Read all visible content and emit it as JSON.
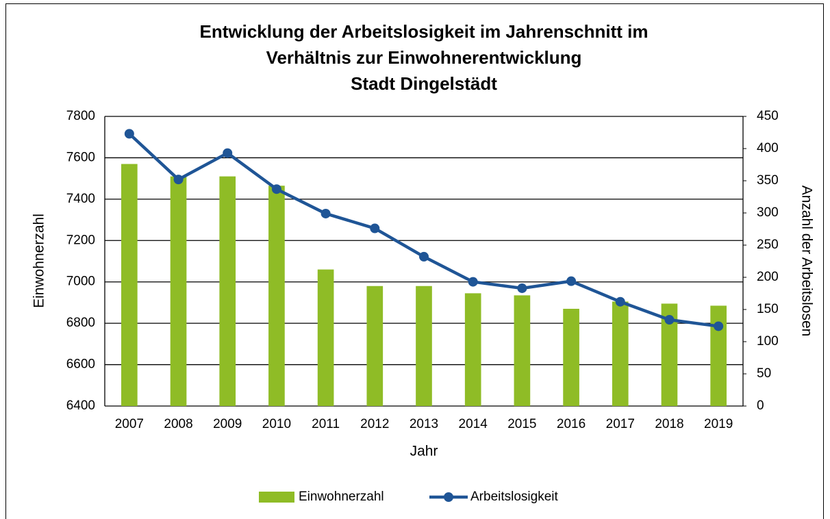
{
  "chart_data": {
    "type": "bar-line",
    "title": [
      "Entwicklung der Arbeitslosigkeit im Jahrenschnitt im",
      "Verhältnis zur Einwohnerentwicklung",
      "Stadt Dingelstädt"
    ],
    "x_label": "Jahr",
    "y_label": "Einwohnerzahl",
    "y2_label": "Anzahl der Arbeitslosen",
    "categories": [
      "2007",
      "2008",
      "2009",
      "2010",
      "2011",
      "2012",
      "2013",
      "2014",
      "2015",
      "2016",
      "2017",
      "2018",
      "2019"
    ],
    "series": [
      {
        "name": "Einwohnerzahl",
        "type": "bar",
        "color": "#8fbc26",
        "values": [
          7570,
          7510,
          7510,
          7465,
          7060,
          6980,
          6980,
          6945,
          6935,
          6870,
          6905,
          6895,
          6885
        ]
      },
      {
        "name": "Arbeitslosigkeit",
        "type": "line",
        "axis": "y2",
        "color": "#1f5596",
        "values": [
          423,
          352,
          393,
          337,
          299,
          276,
          232,
          193,
          183,
          194,
          162,
          134,
          124
        ]
      }
    ],
    "ylim": [
      6400,
      7800
    ],
    "yticks": [
      6400,
      6600,
      6800,
      7000,
      7200,
      7400,
      7600,
      7800
    ],
    "y2lim": [
      0,
      450
    ],
    "y2ticks": [
      0,
      50,
      100,
      150,
      200,
      250,
      300,
      350,
      400,
      450
    ],
    "grid": true,
    "legend": "bottom"
  }
}
